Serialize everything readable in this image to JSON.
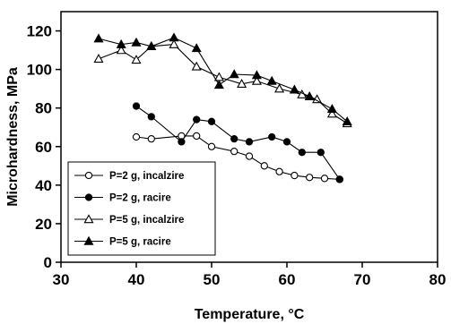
{
  "chart_data": {
    "type": "line",
    "title": "",
    "xlabel": "Temperature, °C",
    "ylabel": "Microhardness, MPa",
    "xlim": [
      30,
      80
    ],
    "ylim": [
      0,
      130
    ],
    "x_ticks": [
      "30",
      "40",
      "50",
      "60",
      "70",
      "80"
    ],
    "y_ticks": [
      "0",
      "20",
      "40",
      "60",
      "80",
      "100",
      "120"
    ],
    "grid": false,
    "legend_position": "bottom-left",
    "series": [
      {
        "name": "P=2 g, incalzire",
        "marker": "circle-open",
        "color": "#000000",
        "x": [
          40,
          42,
          46,
          48,
          50,
          53,
          55,
          57,
          59,
          61,
          63,
          65,
          67
        ],
        "y": [
          65,
          64,
          65.5,
          65.5,
          60,
          57.5,
          55,
          50,
          47,
          45,
          44,
          43.5,
          43
        ]
      },
      {
        "name": "P=2 g, racire",
        "marker": "circle-filled",
        "color": "#000000",
        "x": [
          40,
          42,
          46,
          48,
          50,
          53,
          55,
          58,
          60,
          62,
          64.5,
          67
        ],
        "y": [
          81,
          75.5,
          62.5,
          74,
          73,
          64,
          62.5,
          65,
          62.5,
          57,
          57,
          43
        ]
      },
      {
        "name": "P=5 g, incalzire",
        "marker": "triangle-open",
        "color": "#000000",
        "x": [
          35,
          38,
          40,
          42,
          45,
          48,
          51,
          54,
          56,
          59,
          62,
          64,
          66,
          68
        ],
        "y": [
          105.5,
          110,
          105,
          112,
          113,
          101.5,
          96,
          92.5,
          94,
          90,
          87,
          84.5,
          77,
          72
        ]
      },
      {
        "name": "P=5 g, racire",
        "marker": "triangle-filled",
        "color": "#000000",
        "x": [
          35,
          38,
          40,
          42,
          45,
          48,
          51,
          53,
          56,
          58,
          61,
          63,
          66,
          68
        ],
        "y": [
          116,
          113,
          114,
          112,
          116.5,
          111,
          92,
          97.5,
          97,
          94,
          89.5,
          86,
          79.5,
          73
        ]
      }
    ]
  }
}
